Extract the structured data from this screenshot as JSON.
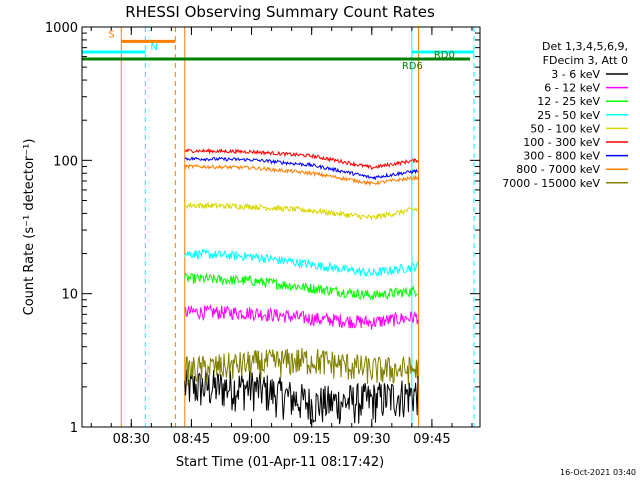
{
  "chart_data": {
    "type": "line",
    "title": "RHESSI Observing Summary Count Rates",
    "xlabel": "Start Time (01-Apr-11 08:17:42)",
    "ylabel": "Count Rate (s⁻¹ detector⁻¹)",
    "yscale": "log",
    "ylim": [
      1,
      1000
    ],
    "xlim": [
      "08:17:42",
      "09:57:00"
    ],
    "x_ticks": [
      "08:30",
      "08:45",
      "09:00",
      "09:15",
      "09:30",
      "09:45"
    ],
    "y_ticks": [
      "1",
      "10",
      "100",
      "1000"
    ],
    "footer_date": "16-Oct-2021 03:40",
    "legend": {
      "placement": "right",
      "header": [
        "Det 1,3,4,5,6,9,",
        "FDecim 3, Att 0"
      ]
    },
    "data_start": "08:43:20",
    "data_end": "09:41:40",
    "series": [
      {
        "name": "3 - 6 keV",
        "color": "#000000",
        "values_at": [
          "08:45",
          "09:00",
          "09:15",
          "09:30",
          "09:41"
        ],
        "values": [
          2.0,
          2.0,
          1.5,
          1.6,
          1.8
        ]
      },
      {
        "name": "6 - 12 keV",
        "color": "#ff00ff",
        "values_at": [
          "08:45",
          "09:00",
          "09:15",
          "09:30",
          "09:41"
        ],
        "values": [
          7.3,
          7.2,
          6.5,
          6.1,
          6.7
        ]
      },
      {
        "name": "12 - 25 keV",
        "color": "#00ff00",
        "values_at": [
          "08:45",
          "09:00",
          "09:15",
          "09:30",
          "09:41"
        ],
        "values": [
          13.0,
          12.5,
          11.0,
          9.7,
          10.5
        ]
      },
      {
        "name": "25 - 50 keV",
        "color": "#00ffff",
        "values_at": [
          "08:45",
          "09:00",
          "09:15",
          "09:30",
          "09:41"
        ],
        "values": [
          20.0,
          19.0,
          16.5,
          14.2,
          16.0
        ]
      },
      {
        "name": "50 - 100 keV",
        "color": "#d8d800",
        "values_at": [
          "08:45",
          "09:00",
          "09:15",
          "09:30",
          "09:41"
        ],
        "values": [
          46,
          45,
          42,
          37,
          43
        ]
      },
      {
        "name": "100 - 300 keV",
        "color": "#ff0000",
        "values_at": [
          "08:45",
          "09:00",
          "09:15",
          "09:30",
          "09:41"
        ],
        "values": [
          118,
          116,
          108,
          88,
          100
        ]
      },
      {
        "name": "300 - 800 keV",
        "color": "#0000ff",
        "values_at": [
          "08:45",
          "09:00",
          "09:15",
          "09:30",
          "09:41"
        ],
        "values": [
          103,
          101,
          92,
          74,
          83
        ]
      },
      {
        "name": "800 - 7000 keV",
        "color": "#ff8000",
        "values_at": [
          "08:45",
          "09:00",
          "09:15",
          "09:30",
          "09:41"
        ],
        "values": [
          90,
          88,
          80,
          67,
          74
        ]
      },
      {
        "name": "7000 - 15000 keV",
        "color": "#808000",
        "values_at": [
          "08:45",
          "09:00",
          "09:15",
          "09:30",
          "09:41"
        ],
        "values": [
          2.7,
          3.0,
          3.2,
          2.7,
          2.7
        ]
      }
    ],
    "flags": [
      {
        "label": "S",
        "color": "#ff8000",
        "start": "08:27:30",
        "end": "08:41:00",
        "level": 780
      },
      {
        "label": "N",
        "color": "#00ffff",
        "start": "08:17:42",
        "end": "08:33:30",
        "level": 650
      },
      {
        "label": "RD0",
        "color": "#00ffff",
        "start": "09:40:00",
        "end": "09:55:30",
        "level": 650
      },
      {
        "label": "RD6",
        "color": "#008000",
        "start": "08:17:42",
        "end": "09:54:30",
        "level": 575
      }
    ],
    "vlines": [
      {
        "at": "08:27:30",
        "color": "#ff8000",
        "style": "solid"
      },
      {
        "at": "08:33:30",
        "color": "#00ffff",
        "style": "dashed"
      },
      {
        "at": "08:41:00",
        "color": "#ff8000",
        "style": "dashed"
      },
      {
        "at": "08:43:20",
        "color": "#ff8000",
        "style": "solid"
      },
      {
        "at": "09:40:00",
        "color": "#00ffff",
        "style": "solid"
      },
      {
        "at": "09:41:40",
        "color": "#ff8000",
        "style": "solid"
      },
      {
        "at": "09:55:30",
        "color": "#00ffff",
        "style": "dashed"
      }
    ]
  }
}
